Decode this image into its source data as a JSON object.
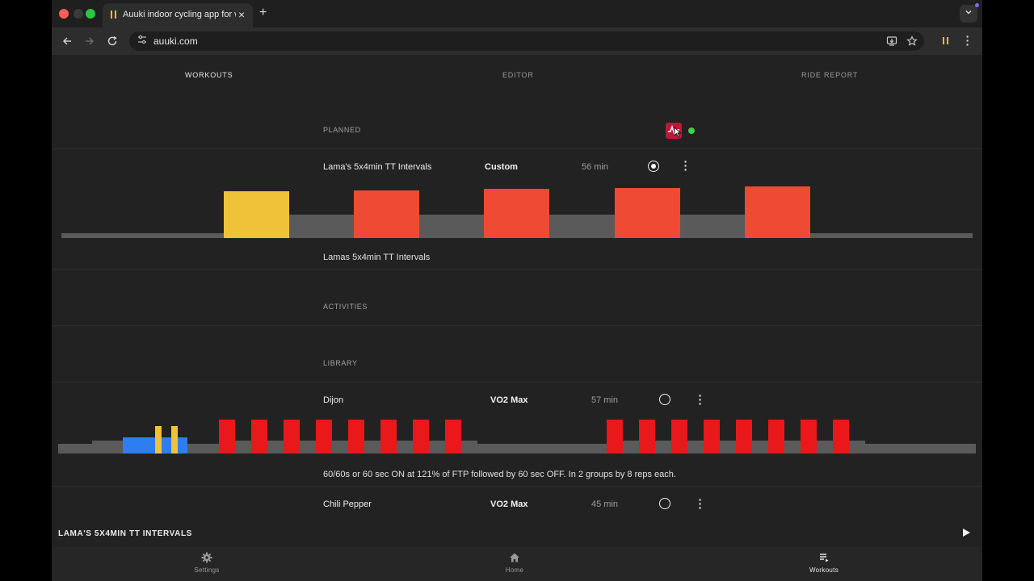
{
  "browser": {
    "tab_title": "Auuki indoor cycling app for w",
    "url": "auuki.com",
    "new_tab_symbol": "+",
    "close_symbol": "×"
  },
  "nav": {
    "tabs": [
      {
        "label": "WORKOUTS"
      },
      {
        "label": "EDITOR"
      },
      {
        "label": "RIDE REPORT"
      }
    ]
  },
  "sections": {
    "planned": "PLANNED",
    "activities": "ACTIVITIES",
    "library": "LIBRARY"
  },
  "planned_workout": {
    "name": "Lama's 5x4min TT Intervals",
    "category": "Custom",
    "duration": "56 min",
    "description": "Lamas 5x4min TT Intervals",
    "selected": true
  },
  "library": [
    {
      "name": "Dijon",
      "category": "VO2 Max",
      "duration": "57 min",
      "description": "60/60s or 60 sec ON at 121% of FTP followed by 60 sec OFF. In 2 groups by 8 reps each.",
      "selected": false
    },
    {
      "name": "Chili Pepper",
      "category": "VO2 Max",
      "duration": "45 min",
      "selected": false
    }
  ],
  "player": {
    "current_workout": "LAMA'S 5X4MIN TT INTERVALS"
  },
  "bottom_nav": [
    {
      "label": "Settings",
      "icon": "gear-icon"
    },
    {
      "label": "Home",
      "icon": "home-icon"
    },
    {
      "label": "Workouts",
      "icon": "list-icon"
    }
  ],
  "colors": {
    "zone_tempo": "#f0c23a",
    "zone_threshold": "#ef4a33",
    "zone_vo2": "#e8181b",
    "zone_endurance": "#2f7ef0",
    "zone_recovery": "#5a5a5a",
    "strava": "#c2153a",
    "connected": "#3fd14a"
  }
}
